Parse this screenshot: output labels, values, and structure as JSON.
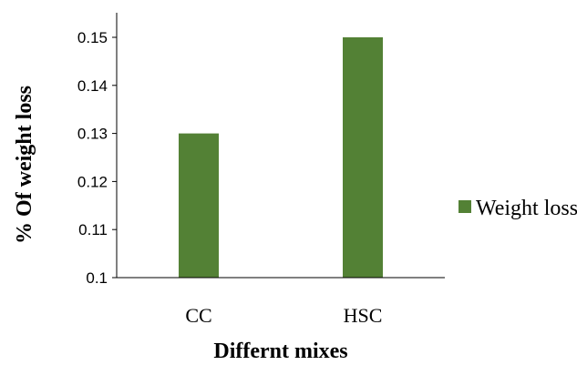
{
  "chart_data": {
    "type": "bar",
    "categories": [
      "CC",
      "HSC"
    ],
    "series": [
      {
        "name": "Weight loss",
        "values": [
          0.13,
          0.15
        ],
        "color": "#538135"
      }
    ],
    "xlabel": "Differnt mixes",
    "ylabel": "% Of weight loss",
    "ylim": [
      0.1,
      0.15
    ],
    "yticks": [
      "0.1",
      "0.11",
      "0.12",
      "0.13",
      "0.14",
      "0.15"
    ],
    "grid": false,
    "legend_position": "right"
  }
}
